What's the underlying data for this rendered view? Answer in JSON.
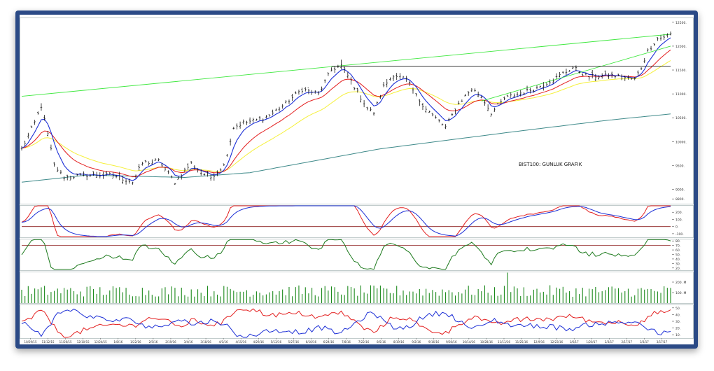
{
  "chart_data": {
    "type": "line",
    "annotation": "BIST100: GUNLUK GRAFIK",
    "main_panel": {
      "ylim": [
        8700,
        12600
      ],
      "y_ticks": [
        8800,
        9000,
        9500,
        10000,
        10500,
        11000,
        11500,
        12000,
        12500
      ],
      "y_tick_labels": [
        "8800.",
        "9000.",
        "9500.",
        "10000.",
        "10500.",
        "11000.",
        "11500.",
        "12000.",
        "12500."
      ],
      "bars": 155,
      "price_anchors": [
        [
          0,
          9850
        ],
        [
          4,
          10400
        ],
        [
          6,
          10750
        ],
        [
          8,
          10150
        ],
        [
          10,
          9500
        ],
        [
          13,
          9250
        ],
        [
          20,
          9300
        ],
        [
          28,
          9300
        ],
        [
          34,
          9150
        ],
        [
          37,
          9550
        ],
        [
          42,
          9600
        ],
        [
          47,
          9150
        ],
        [
          52,
          9550
        ],
        [
          55,
          9350
        ],
        [
          58,
          9250
        ],
        [
          62,
          9500
        ],
        [
          65,
          10300
        ],
        [
          68,
          10400
        ],
        [
          72,
          10450
        ],
        [
          76,
          10550
        ],
        [
          81,
          10800
        ],
        [
          86,
          11100
        ],
        [
          91,
          11000
        ],
        [
          95,
          11500
        ],
        [
          98,
          11600
        ],
        [
          102,
          11150
        ],
        [
          106,
          10700
        ],
        [
          108,
          10600
        ],
        [
          111,
          11150
        ],
        [
          114,
          11400
        ],
        [
          118,
          11300
        ],
        [
          122,
          10850
        ],
        [
          126,
          10550
        ],
        [
          130,
          10300
        ],
        [
          134,
          10800
        ],
        [
          138,
          11100
        ],
        [
          141,
          10950
        ],
        [
          144,
          10600
        ],
        [
          148,
          10900
        ],
        [
          152,
          11000
        ],
        [
          157,
          11100
        ],
        [
          163,
          11300
        ],
        [
          169,
          11550
        ],
        [
          174,
          11350
        ],
        [
          180,
          11400
        ],
        [
          184,
          11350
        ],
        [
          188,
          11300
        ],
        [
          190,
          11550
        ],
        [
          192,
          11900
        ],
        [
          195,
          12150
        ],
        [
          199,
          12250
        ]
      ],
      "sma_long_anchors": [
        [
          0,
          9150
        ],
        [
          20,
          9300
        ],
        [
          50,
          9250
        ],
        [
          70,
          9350
        ],
        [
          110,
          9850
        ],
        [
          150,
          10200
        ],
        [
          180,
          10450
        ],
        [
          199,
          10580
        ]
      ],
      "trendline_green": [
        [
          0,
          10950
        ],
        [
          199,
          12250
        ]
      ],
      "trendline_green_2": [
        [
          141,
          10850
        ],
        [
          199,
          12000
        ]
      ],
      "resistance_black": [
        [
          95,
          11580
        ],
        [
          199,
          11580
        ]
      ]
    },
    "oscillator_1": {
      "y_ticks": [
        200,
        100,
        0,
        -100
      ],
      "y_tick_labels": [
        "200.",
        "100.",
        "0.",
        "-100."
      ],
      "ylim": [
        -150,
        300
      ],
      "level": 0
    },
    "oscillator_2": {
      "y_ticks": [
        80,
        70,
        60,
        50,
        40,
        30,
        20
      ],
      "y_tick_labels": [
        "80.",
        "70.",
        "60.",
        "50.",
        "40.",
        "30.",
        "20."
      ],
      "ylim": [
        15,
        85
      ],
      "level": 70
    },
    "volume": {
      "y_ticks": [
        200,
        100
      ],
      "y_tick_labels": [
        "200. M",
        "100. M"
      ],
      "ylim": [
        0,
        300
      ]
    },
    "dmi": {
      "y_ticks": [
        50,
        40,
        30,
        20,
        10
      ],
      "y_tick_labels": [
        "50.",
        "40.",
        "30.",
        "20.",
        "10."
      ],
      "ylim": [
        5,
        55
      ]
    },
    "x_axis": {
      "labels": [
        "10/29/15",
        "11/12/15",
        "11/26/15",
        "12/10/15",
        "12/24/15",
        "1/8/16",
        "1/22/16",
        "2/5/16",
        "2/19/16",
        "3/4/16",
        "3/18/16",
        "4/1/16",
        "4/15/16",
        "4/29/16",
        "5/13/16",
        "5/27/16",
        "6/10/16",
        "6/24/16",
        "7/8/16",
        "7/22/16",
        "8/5/16",
        "8/19/16",
        "9/2/16",
        "9/16/16",
        "9/30/16",
        "10/14/16",
        "10/28/16",
        "11/11/16",
        "11/25/16",
        "12/9/16",
        "12/23/16",
        "1/6/17",
        "1/20/17",
        "2/3/17",
        "2/17/17",
        "3/3/17",
        "3/17/17"
      ]
    },
    "colors": {
      "price": "#111111",
      "ema_fast": "#1c2fd6",
      "ema_mid": "#e31e1e",
      "ema_slow": "#f5f03a",
      "sma_long": "#3f8a8a",
      "trend_green": "#3ee83e",
      "resistance": "#222222",
      "osc_red": "#e31e1e",
      "osc_blue": "#1c2fd6",
      "rsi_green": "#1d7a1d",
      "level_line": "#8b1a1a",
      "volume": "#1d8a1d"
    }
  }
}
